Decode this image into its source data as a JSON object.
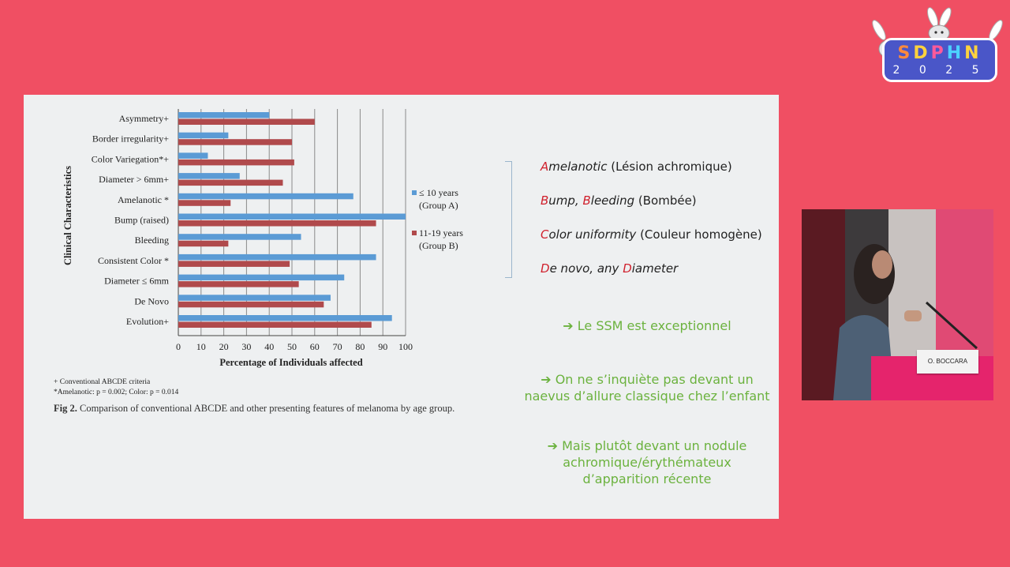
{
  "logo": {
    "letters": [
      "S",
      "D",
      "P",
      "H",
      "N"
    ],
    "year": "2 0 2 5"
  },
  "chart_data": {
    "type": "bar",
    "orientation": "horizontal",
    "categories": [
      "Asymmetry+",
      "Border irregularity+",
      "Color Variegation*+",
      "Diameter > 6mm+",
      "Amelanotic *",
      "Bump (raised)",
      "Bleeding",
      "Consistent Color *",
      "Diameter ≤ 6mm",
      "De Novo",
      "Evolution+"
    ],
    "series": [
      {
        "name": "≤ 10 years (Group A)",
        "legend_lines": [
          "≤ 10 years",
          "(Group A)"
        ],
        "color": "#5b9bd5",
        "values": [
          40,
          22,
          13,
          27,
          77,
          100,
          54,
          87,
          73,
          67,
          94
        ]
      },
      {
        "name": "11-19 years (Group B)",
        "legend_lines": [
          "11-19 years",
          "(Group B)"
        ],
        "color": "#b04a4c",
        "values": [
          60,
          50,
          51,
          46,
          23,
          87,
          22,
          49,
          53,
          64,
          85
        ]
      }
    ],
    "xlabel": "Percentage of Individuals affected",
    "ylabel": "Clinical Characteristics",
    "xlim": [
      0,
      100
    ],
    "xticks": [
      0,
      10,
      20,
      30,
      40,
      50,
      60,
      70,
      80,
      90,
      100
    ],
    "grid": "vertical",
    "legend_position": "right"
  },
  "footnotes": [
    "+ Conventional ABCDE criteria",
    "*Amelanotic: p = 0.002; Color: p = 0.014"
  ],
  "caption": {
    "label": "Fig 2.",
    "text": "Comparison of conventional ABCDE and other presenting features of melanoma by age group."
  },
  "criteria": [
    {
      "parts": [
        {
          "t": "A",
          "red": true,
          "italic": true
        },
        {
          "t": "melanotic",
          "italic": true
        },
        {
          "t": " (Lésion achromique)"
        }
      ]
    },
    {
      "parts": [
        {
          "t": "B",
          "red": true,
          "italic": true
        },
        {
          "t": "ump, ",
          "italic": true
        },
        {
          "t": "B",
          "red": true,
          "italic": true
        },
        {
          "t": "leeding",
          "italic": true
        },
        {
          "t": " (Bombée)"
        }
      ]
    },
    {
      "parts": [
        {
          "t": "C",
          "red": true,
          "italic": true
        },
        {
          "t": "olor uniformity",
          "italic": true
        },
        {
          "t": " (Couleur homogène)"
        }
      ]
    },
    {
      "parts": [
        {
          "t": "D",
          "red": true,
          "italic": true
        },
        {
          "t": "e novo, any ",
          "italic": true
        },
        {
          "t": "D",
          "red": true,
          "italic": true
        },
        {
          "t": "iameter",
          "italic": true
        }
      ]
    }
  ],
  "bullets": [
    {
      "arrow": "➔",
      "lines": [
        "Le SSM est exceptionnel"
      ]
    },
    {
      "arrow": "➔",
      "lines": [
        "On ne s’inquiète pas devant un",
        "naevus d’allure classique chez l’enfant"
      ]
    },
    {
      "arrow": "➔",
      "lines": [
        "Mais plutôt devant un nodule",
        "achromique/érythémateux",
        "d’apparition récente"
      ]
    }
  ],
  "speaker": {
    "nameplate": "O. BOCCARA"
  },
  "colors": {
    "background": "#f04f63",
    "slide": "#eef0f1",
    "accent_red": "#d0202c",
    "bullet_green": "#6bb23e"
  }
}
